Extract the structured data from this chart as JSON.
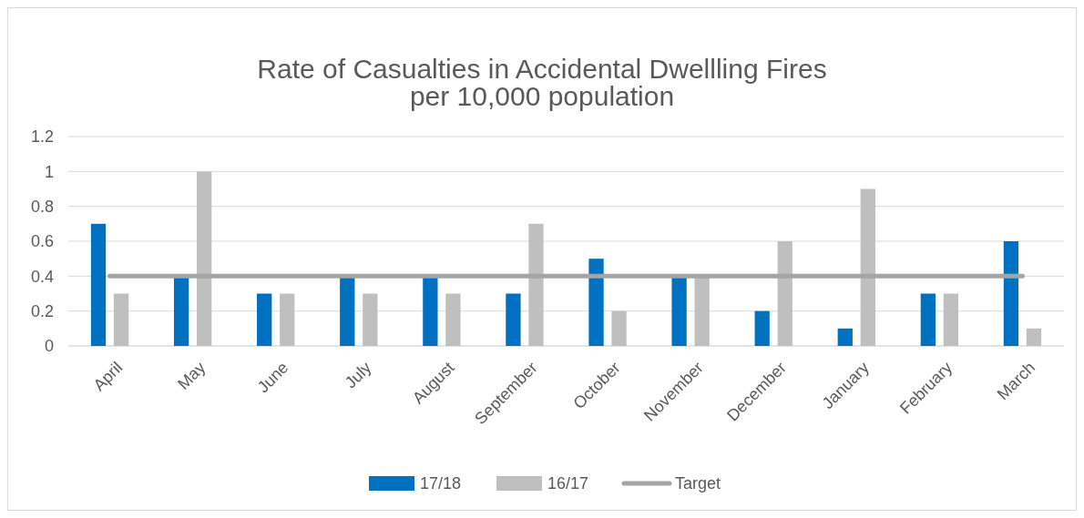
{
  "chart_data": {
    "type": "bar",
    "title": "Rate of Casualties in Accidental Dwellling Fires",
    "subtitle": "per 10,000 population",
    "categories": [
      "April",
      "May",
      "June",
      "July",
      "August",
      "September",
      "October",
      "November",
      "December",
      "January",
      "February",
      "March"
    ],
    "series": [
      {
        "name": "17/18",
        "color": "#0070c0",
        "values": [
          0.7,
          0.4,
          0.3,
          0.4,
          0.4,
          0.3,
          0.5,
          0.4,
          0.2,
          0.1,
          0.3,
          0.6
        ]
      },
      {
        "name": "16/17",
        "color": "#bfbfbf",
        "values": [
          0.3,
          1,
          0.3,
          0.3,
          0.3,
          0.7,
          0.2,
          0.4,
          0.6,
          0.9,
          0.3,
          0.1
        ]
      },
      {
        "name": "Target",
        "type": "line",
        "color": "#a5a5a5",
        "values": [
          0.4,
          0.4,
          0.4,
          0.4,
          0.4,
          0.4,
          0.4,
          0.4,
          0.4,
          0.4,
          0.4,
          0.4
        ]
      }
    ],
    "ylim": [
      0,
      1.2
    ],
    "yticks": [
      0,
      0.2,
      0.4,
      0.6,
      0.8,
      1,
      1.2
    ],
    "grid": "y",
    "legend": "bottom"
  }
}
